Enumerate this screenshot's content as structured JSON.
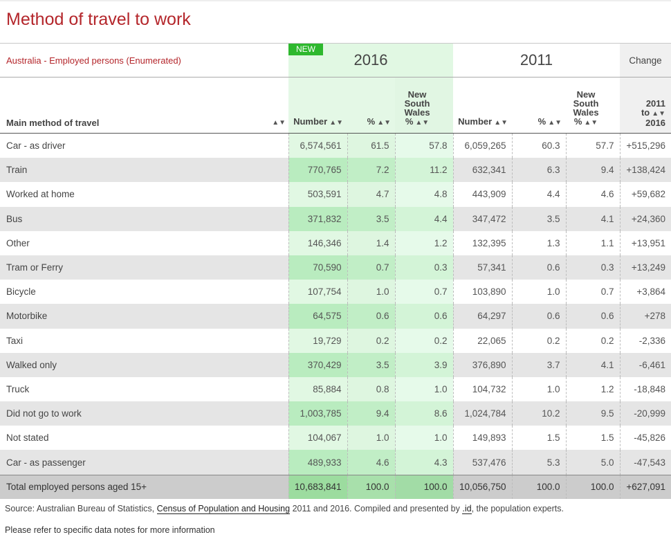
{
  "page_title": "Method of travel to work",
  "subtitle": "Australia - Employed persons (Enumerated)",
  "badge": "NEW",
  "year_2016": "2016",
  "year_2011": "2011",
  "change_label": "Change",
  "columns": {
    "main": "Main method of travel",
    "number": "Number",
    "percent": "%",
    "nsw_line1": "New",
    "nsw_line2": "South",
    "nsw_line3": "Wales",
    "nsw_line4": "%",
    "change_line1": "2011 to",
    "change_line2": "2016"
  },
  "rows": [
    {
      "label": "Car - as driver",
      "n2016": "6,574,561",
      "p2016": "61.5",
      "nsw2016": "57.8",
      "n2011": "6,059,265",
      "p2011": "60.3",
      "nsw2011": "57.7",
      "change": "+515,296"
    },
    {
      "label": "Train",
      "n2016": "770,765",
      "p2016": "7.2",
      "nsw2016": "11.2",
      "n2011": "632,341",
      "p2011": "6.3",
      "nsw2011": "9.4",
      "change": "+138,424"
    },
    {
      "label": "Worked at home",
      "n2016": "503,591",
      "p2016": "4.7",
      "nsw2016": "4.8",
      "n2011": "443,909",
      "p2011": "4.4",
      "nsw2011": "4.6",
      "change": "+59,682"
    },
    {
      "label": "Bus",
      "n2016": "371,832",
      "p2016": "3.5",
      "nsw2016": "4.4",
      "n2011": "347,472",
      "p2011": "3.5",
      "nsw2011": "4.1",
      "change": "+24,360"
    },
    {
      "label": "Other",
      "n2016": "146,346",
      "p2016": "1.4",
      "nsw2016": "1.2",
      "n2011": "132,395",
      "p2011": "1.3",
      "nsw2011": "1.1",
      "change": "+13,951"
    },
    {
      "label": "Tram or Ferry",
      "n2016": "70,590",
      "p2016": "0.7",
      "nsw2016": "0.3",
      "n2011": "57,341",
      "p2011": "0.6",
      "nsw2011": "0.3",
      "change": "+13,249"
    },
    {
      "label": "Bicycle",
      "n2016": "107,754",
      "p2016": "1.0",
      "nsw2016": "0.7",
      "n2011": "103,890",
      "p2011": "1.0",
      "nsw2011": "0.7",
      "change": "+3,864"
    },
    {
      "label": "Motorbike",
      "n2016": "64,575",
      "p2016": "0.6",
      "nsw2016": "0.6",
      "n2011": "64,297",
      "p2011": "0.6",
      "nsw2011": "0.6",
      "change": "+278"
    },
    {
      "label": "Taxi",
      "n2016": "19,729",
      "p2016": "0.2",
      "nsw2016": "0.2",
      "n2011": "22,065",
      "p2011": "0.2",
      "nsw2011": "0.2",
      "change": "-2,336"
    },
    {
      "label": "Walked only",
      "n2016": "370,429",
      "p2016": "3.5",
      "nsw2016": "3.9",
      "n2011": "376,890",
      "p2011": "3.7",
      "nsw2011": "4.1",
      "change": "-6,461"
    },
    {
      "label": "Truck",
      "n2016": "85,884",
      "p2016": "0.8",
      "nsw2016": "1.0",
      "n2011": "104,732",
      "p2011": "1.0",
      "nsw2011": "1.2",
      "change": "-18,848"
    },
    {
      "label": "Did not go to work",
      "n2016": "1,003,785",
      "p2016": "9.4",
      "nsw2016": "8.6",
      "n2011": "1,024,784",
      "p2011": "10.2",
      "nsw2011": "9.5",
      "change": "-20,999"
    },
    {
      "label": "Not stated",
      "n2016": "104,067",
      "p2016": "1.0",
      "nsw2016": "1.0",
      "n2011": "149,893",
      "p2011": "1.5",
      "nsw2011": "1.5",
      "change": "-45,826"
    },
    {
      "label": "Car - as passenger",
      "n2016": "489,933",
      "p2016": "4.6",
      "nsw2016": "4.3",
      "n2011": "537,476",
      "p2011": "5.3",
      "nsw2011": "5.0",
      "change": "-47,543"
    }
  ],
  "total": {
    "label": "Total employed persons aged 15+",
    "n2016": "10,683,841",
    "p2016": "100.0",
    "nsw2016": "100.0",
    "n2011": "10,056,750",
    "p2011": "100.0",
    "nsw2011": "100.0",
    "change": "+627,091"
  },
  "footer": {
    "source_prefix": "Source: Australian Bureau of Statistics,",
    "census_link": "Census of Population and Housing",
    "source_mid": "2011 and 2016. Compiled and presented by",
    "id_link": ".id",
    "source_suffix": ", the population experts.",
    "notes": "Please refer to specific data notes for more information"
  },
  "icons": {
    "sort": "sort-updown-icon"
  }
}
